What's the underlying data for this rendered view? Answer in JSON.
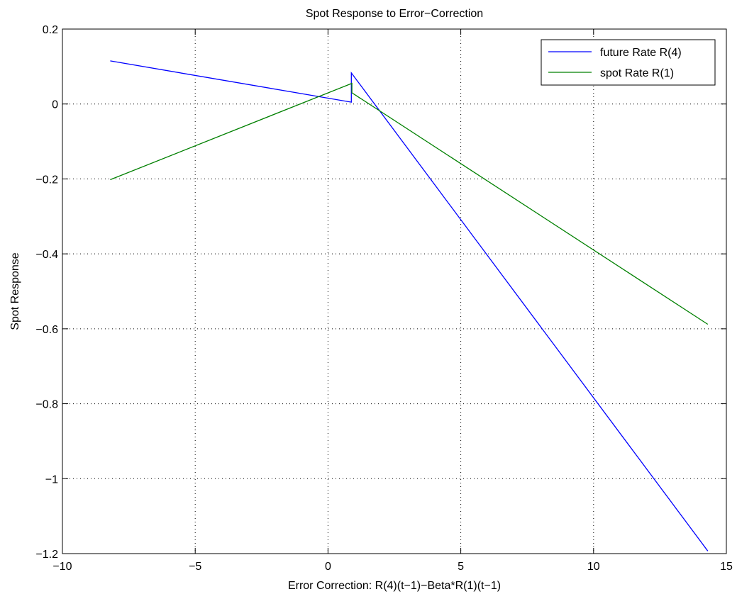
{
  "chart_data": {
    "type": "line",
    "title": "Spot  Response to Error−Correction",
    "xlabel": "Error Correction: R(4)(t−1)−Beta*R(1)(t−1)",
    "ylabel": "Spot  Response",
    "xlim": [
      -10,
      15
    ],
    "ylim": [
      -1.2,
      0.2
    ],
    "xticks": [
      -10,
      -5,
      0,
      5,
      10,
      15
    ],
    "xtick_labels": [
      "−10",
      "−5",
      "0",
      "5",
      "10",
      "15"
    ],
    "yticks": [
      -1.2,
      -1,
      -0.8,
      -0.6,
      -0.4,
      -0.2,
      0,
      0.2
    ],
    "ytick_labels": [
      "−1.2",
      "−1",
      "−0.8",
      "−0.6",
      "−0.4",
      "−0.2",
      "0",
      "0.2"
    ],
    "grid": true,
    "grid_style": "dotted",
    "legend_position": "top-right",
    "series": [
      {
        "name": "future Rate R(4)",
        "color": "#0000ff",
        "x": [
          -8.2,
          0.88,
          0.88,
          14.3
        ],
        "y": [
          0.115,
          0.005,
          0.083,
          -1.193
        ]
      },
      {
        "name": "spot Rate R(1)",
        "color": "#008000",
        "x": [
          -8.2,
          0.9,
          0.9,
          14.3
        ],
        "y": [
          -0.202,
          0.055,
          0.03,
          -0.588
        ]
      }
    ]
  }
}
